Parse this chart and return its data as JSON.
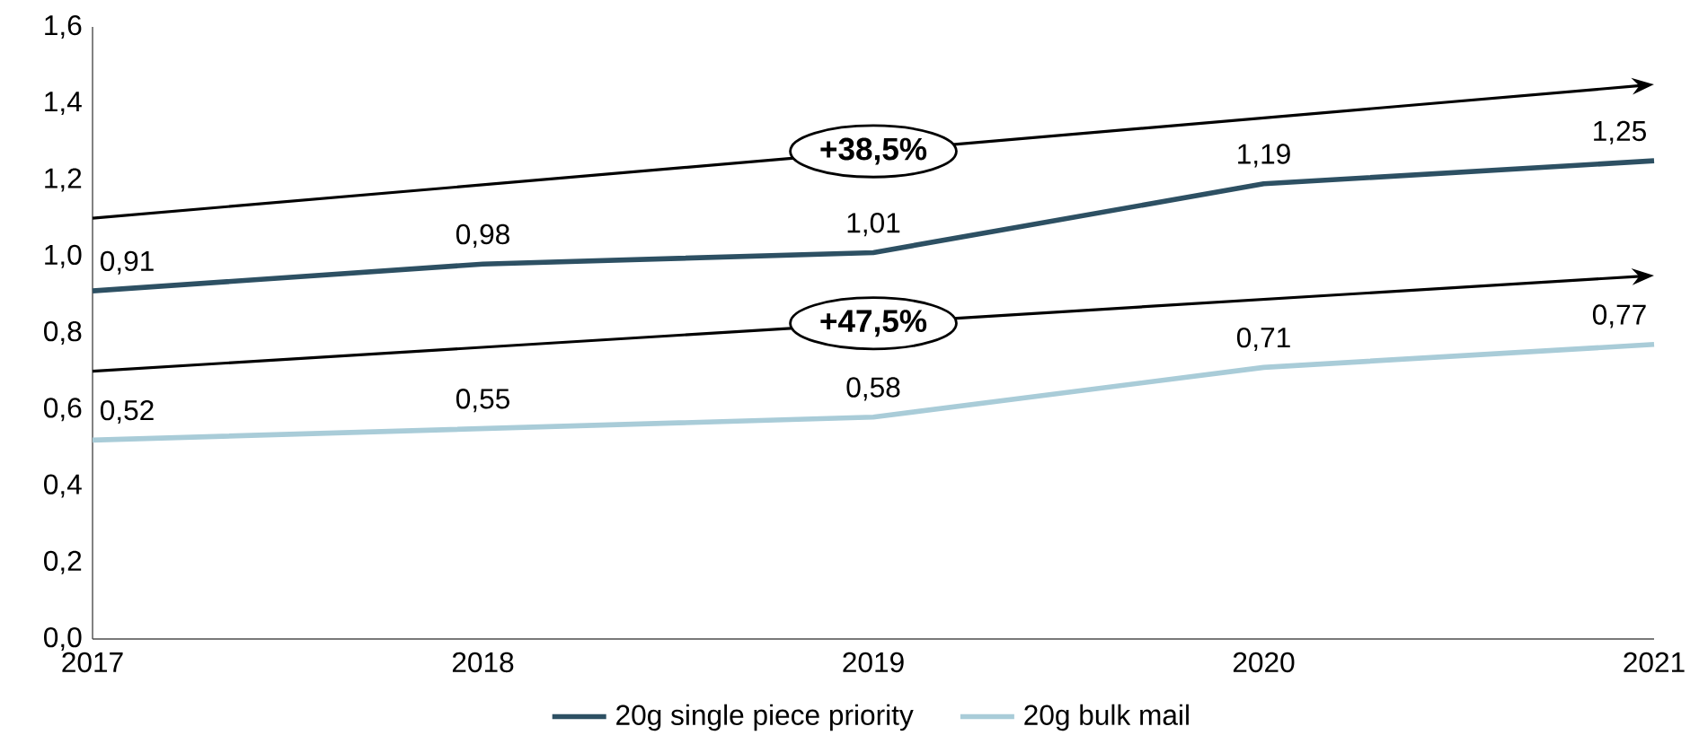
{
  "chart_data": {
    "type": "line",
    "categories": [
      "2017",
      "2018",
      "2019",
      "2020",
      "2021"
    ],
    "series": [
      {
        "name": "20g single piece priority",
        "color": "#2d5063",
        "values": [
          0.91,
          0.98,
          1.01,
          1.19,
          1.25
        ],
        "value_labels": [
          "0,91",
          "0,98",
          "1,01",
          "1,19",
          "1,25"
        ]
      },
      {
        "name": "20g bulk mail",
        "color": "#a9ccd8",
        "values": [
          0.52,
          0.55,
          0.58,
          0.71,
          0.77
        ],
        "value_labels": [
          "0,52",
          "0,55",
          "0,58",
          "0,71",
          "0,77"
        ]
      }
    ],
    "ylim": [
      0,
      1.6
    ],
    "yticks": [
      {
        "value": 0,
        "label": "0,0"
      },
      {
        "value": 0.2,
        "label": "0,2"
      },
      {
        "value": 0.4,
        "label": "0,4"
      },
      {
        "value": 0.6,
        "label": "0,6"
      },
      {
        "value": 0.8,
        "label": "0,8"
      },
      {
        "value": 1.0,
        "label": "1,0"
      },
      {
        "value": 1.2,
        "label": "1,2"
      },
      {
        "value": 1.4,
        "label": "1,4"
      },
      {
        "value": 1.6,
        "label": "1,6"
      }
    ],
    "annotations": [
      "+38,5%",
      "+47,5%"
    ],
    "legend": "bottom",
    "grid": false,
    "marker": "none",
    "line_style": "solid"
  }
}
